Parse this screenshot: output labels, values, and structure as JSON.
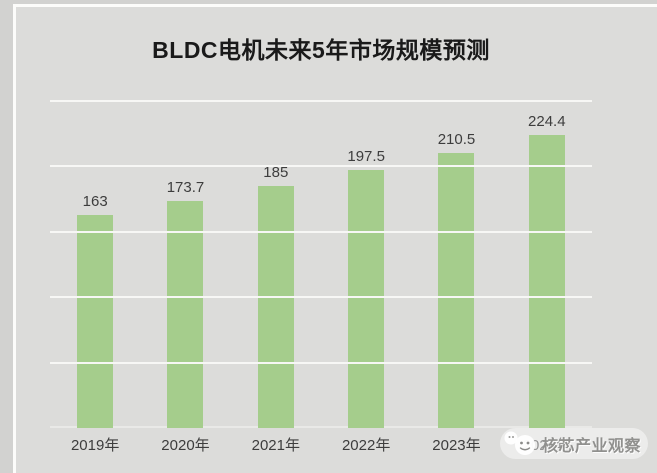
{
  "chart_data": {
    "type": "bar",
    "title": "BLDC电机未来5年市场规模预测",
    "categories": [
      "2019年",
      "2020年",
      "2021年",
      "2022年",
      "2023年",
      "2024年"
    ],
    "values": [
      163,
      173.7,
      185,
      197.5,
      210.5,
      224.4
    ],
    "value_labels": [
      "163",
      "173.7",
      "185",
      "197.5",
      "210.5",
      "224.4"
    ],
    "xlabel": "",
    "ylabel": "",
    "ylim": [
      0,
      250
    ],
    "yticks": [
      0,
      50,
      100,
      150,
      200,
      250
    ],
    "grid": true,
    "legend": false,
    "bar_color": "#a5cd8c",
    "plot_background": "#dcdcda",
    "gridline_color": "#f7f7f5",
    "label_color": "#3d3d3d"
  },
  "watermark": {
    "text": "核芯产业观察",
    "icon": "mascot-chat-bubbles-logo"
  }
}
